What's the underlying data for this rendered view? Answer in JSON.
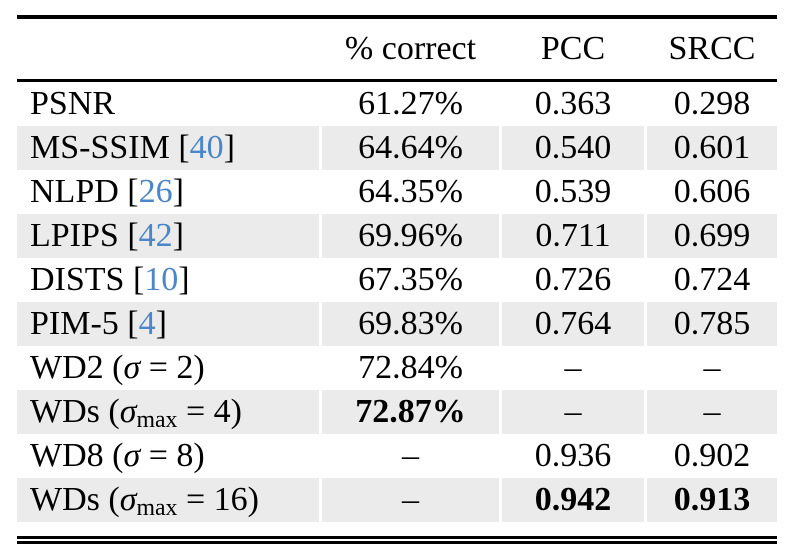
{
  "table": {
    "columns": [
      "",
      "% correct",
      "PCC",
      "SRCC"
    ],
    "colors": {
      "citation_blue": "#4a86c8",
      "row_shade": "#ebebeb",
      "text": "#000000",
      "rule": "#000000",
      "background": "#ffffff"
    },
    "rows": [
      {
        "name": "psnr",
        "label": [
          {
            "t": "PSNR"
          }
        ],
        "values": {
          "correct": "61.27%",
          "pcc": "0.363",
          "srcc": "0.298"
        },
        "bold": [],
        "shaded": false
      },
      {
        "name": "ms-ssim",
        "label": [
          {
            "t": "MS-SSIM ["
          },
          {
            "t": "40",
            "s": "cite"
          },
          {
            "t": "]"
          }
        ],
        "values": {
          "correct": "64.64%",
          "pcc": "0.540",
          "srcc": "0.601"
        },
        "bold": [],
        "shaded": true
      },
      {
        "name": "nlpd",
        "label": [
          {
            "t": "NLPD ["
          },
          {
            "t": "26",
            "s": "cite"
          },
          {
            "t": "]"
          }
        ],
        "values": {
          "correct": "64.35%",
          "pcc": "0.539",
          "srcc": "0.606"
        },
        "bold": [],
        "shaded": false
      },
      {
        "name": "lpips",
        "label": [
          {
            "t": "LPIPS ["
          },
          {
            "t": "42",
            "s": "cite"
          },
          {
            "t": "]"
          }
        ],
        "values": {
          "correct": "69.96%",
          "pcc": "0.711",
          "srcc": "0.699"
        },
        "bold": [],
        "shaded": true
      },
      {
        "name": "dists",
        "label": [
          {
            "t": "DISTS ["
          },
          {
            "t": "10",
            "s": "cite"
          },
          {
            "t": "]"
          }
        ],
        "values": {
          "correct": "67.35%",
          "pcc": "0.726",
          "srcc": "0.724"
        },
        "bold": [],
        "shaded": false
      },
      {
        "name": "pim-5",
        "label": [
          {
            "t": "PIM-5 ["
          },
          {
            "t": "4",
            "s": "cite"
          },
          {
            "t": "]"
          }
        ],
        "values": {
          "correct": "69.83%",
          "pcc": "0.764",
          "srcc": "0.785"
        },
        "bold": [],
        "shaded": true
      },
      {
        "name": "wd2",
        "label": [
          {
            "t": "WD2 ("
          },
          {
            "t": "σ",
            "s": "math"
          },
          {
            "t": " = 2)"
          }
        ],
        "values": {
          "correct": "72.84%",
          "pcc": "–",
          "srcc": "–"
        },
        "bold": [],
        "shaded": false
      },
      {
        "name": "wds-4",
        "label": [
          {
            "t": "WDs ("
          },
          {
            "t": "σ",
            "s": "math"
          },
          {
            "t": "max",
            "s": "sub"
          },
          {
            "t": " = 4)"
          }
        ],
        "values": {
          "correct": "72.87%",
          "pcc": "–",
          "srcc": "–"
        },
        "bold": [
          "correct"
        ],
        "shaded": true
      },
      {
        "name": "wd8",
        "label": [
          {
            "t": "WD8 ("
          },
          {
            "t": "σ",
            "s": "math"
          },
          {
            "t": " = 8)"
          }
        ],
        "values": {
          "correct": "–",
          "pcc": "0.936",
          "srcc": "0.902"
        },
        "bold": [],
        "shaded": false
      },
      {
        "name": "wds-16",
        "label": [
          {
            "t": "WDs ("
          },
          {
            "t": "σ",
            "s": "math"
          },
          {
            "t": "max",
            "s": "sub"
          },
          {
            "t": " = 16)"
          }
        ],
        "values": {
          "correct": "–",
          "pcc": "0.942",
          "srcc": "0.913"
        },
        "bold": [
          "pcc",
          "srcc"
        ],
        "shaded": true
      }
    ]
  }
}
